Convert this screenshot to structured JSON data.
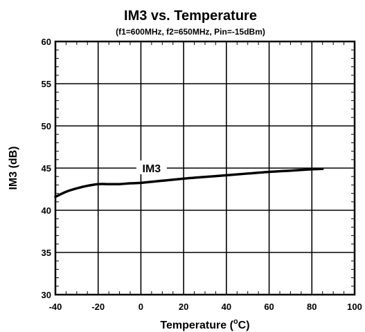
{
  "chart_data": {
    "type": "line",
    "title": "IM3 vs. Temperature",
    "subtitle": "(f1=600MHz, f2=650MHz, Pin=-15dBm)",
    "xlabel_main": "Temperature (",
    "xlabel_sup": "o",
    "xlabel_tail": "C)",
    "ylabel": "IM3 (dB)",
    "xlim": [
      -40,
      100
    ],
    "ylim": [
      30,
      60
    ],
    "x_ticks": [
      -40,
      -20,
      0,
      20,
      40,
      60,
      80,
      100
    ],
    "y_ticks": [
      30,
      35,
      40,
      45,
      50,
      55,
      60
    ],
    "x_tick_labels": [
      "-40",
      "-20",
      "0",
      "20",
      "40",
      "60",
      "80",
      "100"
    ],
    "y_tick_labels": [
      "30",
      "35",
      "40",
      "45",
      "50",
      "55",
      "60"
    ],
    "grid": true,
    "series": [
      {
        "name": "IM3",
        "x": [
          -40,
          -35,
          -30,
          -25,
          -20,
          -15,
          -10,
          -5,
          0,
          10,
          20,
          30,
          40,
          50,
          60,
          70,
          80,
          85
        ],
        "y": [
          41.6,
          42.2,
          42.6,
          42.9,
          43.1,
          43.1,
          43.1,
          43.2,
          43.25,
          43.5,
          43.75,
          43.95,
          44.15,
          44.35,
          44.55,
          44.7,
          44.85,
          44.9
        ]
      }
    ],
    "annotations": [
      {
        "text": "IM3",
        "x": 5,
        "y": 45.0
      }
    ],
    "line_color": "#000000"
  }
}
